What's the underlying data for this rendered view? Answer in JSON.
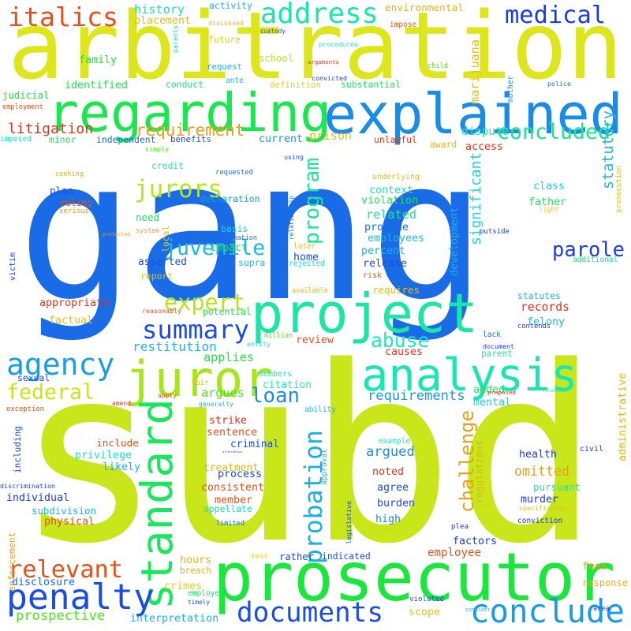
{
  "words": [
    {
      "text": "gang",
      "color": "#1a6ce6"
    },
    {
      "text": "subd",
      "color": "#c8e61a"
    },
    {
      "text": "arbitration",
      "color": "#dce61a"
    },
    {
      "text": "prosecutor",
      "color": "#1ae63c"
    },
    {
      "text": "regarding",
      "color": "#1ae64e"
    },
    {
      "text": "explained",
      "color": "#1a8ce6"
    },
    {
      "text": "project",
      "color": "#1ae6a6"
    },
    {
      "text": "analysis",
      "color": "#1ae6b4"
    },
    {
      "text": "juror",
      "color": "#a6e61a"
    },
    {
      "text": "standard",
      "color": "#1ae65e"
    },
    {
      "text": "conclude",
      "color": "#1a9ae6"
    },
    {
      "text": "documents",
      "color": "#1a4ce6"
    },
    {
      "text": "penalty",
      "color": "#1a4ce6"
    },
    {
      "text": "address",
      "color": "#1ae6b0"
    },
    {
      "text": "medical",
      "color": "#1a3ce6"
    },
    {
      "text": "italics",
      "color": "#e6501a"
    },
    {
      "text": "agency",
      "color": "#1a9ee6"
    },
    {
      "text": "concluded",
      "color": "#1ae68a"
    },
    {
      "text": "summary",
      "color": "#1a4ce6"
    },
    {
      "text": "jurors",
      "color": "#b4e61a"
    },
    {
      "text": "expert",
      "color": "#b4e61a"
    },
    {
      "text": "juvenile",
      "color": "#1ab8e6"
    },
    {
      "text": "parole",
      "color": "#1a3ce6"
    },
    {
      "text": "relevant",
      "color": "#e6501a"
    },
    {
      "text": "federal",
      "color": "#c8e61a"
    },
    {
      "text": "loan",
      "color": "#1a8ce6"
    },
    {
      "text": "probation",
      "color": "#1ab0e6"
    },
    {
      "text": "challenge",
      "color": "#e6a01a"
    },
    {
      "text": "program",
      "color": "#1ae696"
    },
    {
      "text": "significant",
      "color": "#1ad4e6"
    },
    {
      "text": "abuse",
      "color": "#1ae6d0"
    },
    {
      "text": "requirement",
      "color": "#e6a01a"
    },
    {
      "text": "litigation",
      "color": "#e6321a"
    },
    {
      "text": "prospective",
      "color": "#4ee61a"
    },
    {
      "text": "restitution",
      "color": "#1ab8e6"
    },
    {
      "text": "requirements",
      "color": "#1a9ae6"
    },
    {
      "text": "argued",
      "color": "#1a8ce6"
    },
    {
      "text": "omitted",
      "color": "#e6a01a"
    },
    {
      "text": "history",
      "color": "#1ae6b4"
    },
    {
      "text": "environmental",
      "color": "#e6b41a"
    },
    {
      "text": "placement",
      "color": "#e6be1a"
    },
    {
      "text": "activity",
      "color": "#1ab4e6"
    },
    {
      "text": "discussed",
      "color": "#e6b41a"
    },
    {
      "text": "impose",
      "color": "#e65e1a"
    },
    {
      "text": "parents",
      "color": "#1ad0e6"
    },
    {
      "text": "procedures",
      "color": "#1ae6b4"
    },
    {
      "text": "custody",
      "color": "#1a4ce6"
    },
    {
      "text": "future",
      "color": "#e6d01a"
    },
    {
      "text": "arguments",
      "color": "#e6321a"
    },
    {
      "text": "family",
      "color": "#1ae63c"
    },
    {
      "text": "school",
      "color": "#b4e61a"
    },
    {
      "text": "request",
      "color": "#1ab4e6"
    },
    {
      "text": "child",
      "color": "#4ee61a"
    },
    {
      "text": "marijuana",
      "color": "#e6be1a"
    },
    {
      "text": "convicted",
      "color": "#1a3ce6"
    },
    {
      "text": "mother",
      "color": "#1a8ce6"
    },
    {
      "text": "ante",
      "color": "#1ab8e6"
    },
    {
      "text": "identified",
      "color": "#1ae64e"
    },
    {
      "text": "conduct",
      "color": "#1ae67a"
    },
    {
      "text": "definition",
      "color": "#e6d01a"
    },
    {
      "text": "substantial",
      "color": "#1ae65e"
    },
    {
      "text": "judicial",
      "color": "#1ae63c"
    },
    {
      "text": "police",
      "color": "#1a6ce6"
    },
    {
      "text": "employment",
      "color": "#e6501a"
    },
    {
      "text": "imposed",
      "color": "#1ae6b4"
    },
    {
      "text": "minor",
      "color": "#1ae65e"
    },
    {
      "text": "independent",
      "color": "#1a6ce6"
    },
    {
      "text": "benefits",
      "color": "#1a4ce6"
    },
    {
      "text": "current",
      "color": "#1a9ae6"
    },
    {
      "text": "prison",
      "color": "#e6be1a"
    },
    {
      "text": "unlawful",
      "color": "#e6321a"
    },
    {
      "text": "dispute",
      "color": "#1ae6b4"
    },
    {
      "text": "award",
      "color": "#e6b41a"
    },
    {
      "text": "access",
      "color": "#e6321a"
    },
    {
      "text": "statutory",
      "color": "#1ab8e6"
    },
    {
      "text": "simply",
      "color": "#4ee61a"
    },
    {
      "text": "credit",
      "color": "#1ae6b4"
    },
    {
      "text": "seeking",
      "color": "#e6b41a"
    },
    {
      "text": "using",
      "color": "#1a4ce6"
    },
    {
      "text": "underlying",
      "color": "#e6be1a"
    },
    {
      "text": "context",
      "color": "#1ae6a0"
    },
    {
      "text": "violation",
      "color": "#1ae64e"
    },
    {
      "text": "requested",
      "color": "#1a6ce6"
    },
    {
      "text": "plan",
      "color": "#1a4ce6"
    },
    {
      "text": "ruling",
      "color": "#e6501a"
    },
    {
      "text": "serious",
      "color": "#e6a01a"
    },
    {
      "text": "system",
      "color": "#e6a01a"
    },
    {
      "text": "need",
      "color": "#1ae65e"
    },
    {
      "text": "local",
      "color": "#e6be1a"
    },
    {
      "text": "declaration",
      "color": "#1a9ae6"
    },
    {
      "text": "related",
      "color": "#1ae696"
    },
    {
      "text": "provide",
      "color": "#1a6ce6"
    },
    {
      "text": "employees",
      "color": "#1ab8e6"
    },
    {
      "text": "father",
      "color": "#1ae65e"
    },
    {
      "text": "light",
      "color": "#e6d01a"
    },
    {
      "text": "class",
      "color": "#1ad0e6"
    },
    {
      "text": "basis",
      "color": "#1ad0e6"
    },
    {
      "text": "information",
      "color": "#1a6ce6"
    },
    {
      "text": "relationship",
      "color": "#1a6ce6"
    },
    {
      "text": "outside",
      "color": "#1a3ce6"
    },
    {
      "text": "percent",
      "color": "#1ab0e6"
    },
    {
      "text": "development",
      "color": "#1ab0e6"
    },
    {
      "text": "victim",
      "color": "#1a3ce6"
    },
    {
      "text": "protected",
      "color": "#e6a01a"
    },
    {
      "text": "asserted",
      "color": "#1a4ce6"
    },
    {
      "text": "impact",
      "color": "#1ae65e"
    },
    {
      "text": "later",
      "color": "#e6be1a"
    },
    {
      "text": "home",
      "color": "#1a4ce6"
    },
    {
      "text": "release",
      "color": "#1a4ce6"
    },
    {
      "text": "additional",
      "color": "#1ae67a"
    },
    {
      "text": "report",
      "color": "#e6be1a"
    },
    {
      "text": "supra",
      "color": "#1ab8e6"
    },
    {
      "text": "rejected",
      "color": "#1ad0e6"
    },
    {
      "text": "risk",
      "color": "#e6501a"
    },
    {
      "text": "requires",
      "color": "#e6be1a"
    },
    {
      "text": "available",
      "color": "#e6b41a"
    },
    {
      "text": "appropriate",
      "color": "#e6321a"
    },
    {
      "text": "reasonably",
      "color": "#e6501a"
    },
    {
      "text": "potential",
      "color": "#1ae63c"
    },
    {
      "text": "statutes",
      "color": "#1ab8e6"
    },
    {
      "text": "records",
      "color": "#e6321a"
    },
    {
      "text": "factual",
      "color": "#e6be1a"
    },
    {
      "text": "felony",
      "color": "#1ab8e6"
    },
    {
      "text": "million",
      "color": "#4ee61a"
    },
    {
      "text": "review",
      "color": "#e6501a"
    },
    {
      "text": "lack",
      "color": "#1a6ce6"
    },
    {
      "text": "contends",
      "color": "#1a3ce6"
    },
    {
      "text": "causes",
      "color": "#e6321a"
    },
    {
      "text": "document",
      "color": "#1a3ce6"
    },
    {
      "text": "entity",
      "color": "#1ae6b4"
    },
    {
      "text": "parent",
      "color": "#1ae6b4"
    },
    {
      "text": "administrative",
      "color": "#e6b41a"
    },
    {
      "text": "applies",
      "color": "#1ae63c"
    },
    {
      "text": "members",
      "color": "#1ae6b4"
    },
    {
      "text": "citation",
      "color": "#1ae6d0"
    },
    {
      "text": "sexual",
      "color": "#1a4ce6"
    },
    {
      "text": "amend",
      "color": "#e6321a"
    },
    {
      "text": "fair",
      "color": "#e6be1a"
    },
    {
      "text": "generally",
      "color": "#1ab8e6"
    },
    {
      "text": "apply",
      "color": "#e6501a"
    },
    {
      "text": "argues",
      "color": "#4ee61a"
    },
    {
      "text": "added",
      "color": "#1ae65e"
    },
    {
      "text": "proposed",
      "color": "#e6321a"
    },
    {
      "text": "financial",
      "color": "#1ae6b4"
    },
    {
      "text": "mental",
      "color": "#1ad0e6"
    },
    {
      "text": "exception",
      "color": "#e6501a"
    },
    {
      "text": "ability",
      "color": "#1ab8e6"
    },
    {
      "text": "strike",
      "color": "#e6321a"
    },
    {
      "text": "sentence",
      "color": "#e6501a"
    },
    {
      "text": "include",
      "color": "#e6501a"
    },
    {
      "text": "criminal",
      "color": "#1a4ce6"
    },
    {
      "text": "alternative",
      "color": "#1a4ce6"
    },
    {
      "text": "including",
      "color": "#1a4ce6"
    },
    {
      "text": "privilege",
      "color": "#1ae6b4"
    },
    {
      "text": "treatment",
      "color": "#e6b41a"
    },
    {
      "text": "likely",
      "color": "#1ab0e6"
    },
    {
      "text": "approval",
      "color": "#1ab4e6"
    },
    {
      "text": "civil",
      "color": "#1a3ce6"
    },
    {
      "text": "example",
      "color": "#1ae6b4"
    },
    {
      "text": "health",
      "color": "#1a3ce6"
    },
    {
      "text": "process",
      "color": "#1a4ce6"
    },
    {
      "text": "discrimination",
      "color": "#1a3ce6"
    },
    {
      "text": "individual",
      "color": "#1a3ce6"
    },
    {
      "text": "consistent",
      "color": "#e6501a"
    },
    {
      "text": "noted",
      "color": "#e6321a"
    },
    {
      "text": "pursuant",
      "color": "#1ae6b4"
    },
    {
      "text": "subdivision",
      "color": "#1ab8e6"
    },
    {
      "text": "member",
      "color": "#e6501a"
    },
    {
      "text": "agree",
      "color": "#1a4ce6"
    },
    {
      "text": "regulations",
      "color": "#e6b41a"
    },
    {
      "text": "murder",
      "color": "#1a3ce6"
    },
    {
      "text": "physical",
      "color": "#e6501a"
    },
    {
      "text": "appellate",
      "color": "#1ae6b4"
    },
    {
      "text": "burden",
      "color": "#1a4ce6"
    },
    {
      "text": "specifically",
      "color": "#e6be1a"
    },
    {
      "text": "enforcement",
      "color": "#e6a01a"
    },
    {
      "text": "limited",
      "color": "#1a6ce6"
    },
    {
      "text": "legislative",
      "color": "#1a4ce6"
    },
    {
      "text": "high",
      "color": "#1a8ce6"
    },
    {
      "text": "plea",
      "color": "#1a3ce6"
    },
    {
      "text": "conviction",
      "color": "#1a3ce6"
    },
    {
      "text": "factors",
      "color": "#1a3ce6"
    },
    {
      "text": "hours",
      "color": "#e6b41a"
    },
    {
      "text": "test",
      "color": "#e6d01a"
    },
    {
      "text": "rather",
      "color": "#1a4ce6"
    },
    {
      "text": "indicated",
      "color": "#1a4ce6"
    },
    {
      "text": "employee",
      "color": "#e6501a"
    },
    {
      "text": "breach",
      "color": "#e6b41a"
    },
    {
      "text": "disclosure",
      "color": "#1a6ce6"
    },
    {
      "text": "fees",
      "color": "#e6a01a"
    },
    {
      "text": "area",
      "color": "#1a3ce6"
    },
    {
      "text": "employer",
      "color": "#1ae65e"
    },
    {
      "text": "crimes",
      "color": "#e6d01a"
    },
    {
      "text": "response",
      "color": "#e6b41a"
    },
    {
      "text": "timely",
      "color": "#1a4ce6"
    },
    {
      "text": "violated",
      "color": "#1a4ce6"
    },
    {
      "text": "interpretation",
      "color": "#1ab4e6"
    },
    {
      "text": "scope",
      "color": "#e6be1a"
    },
    {
      "text": "consider",
      "color": "#1ab8e6"
    },
    {
      "text": "prosecution",
      "color": "#e6b41a"
    }
  ]
}
